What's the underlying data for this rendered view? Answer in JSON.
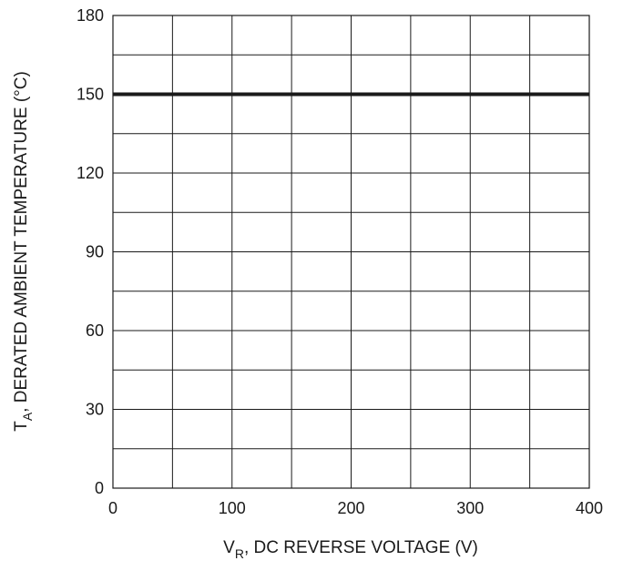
{
  "chart_data": {
    "type": "line",
    "xlabel": {
      "main": "V",
      "sub": "R",
      "rest": ", DC REVERSE VOLTAGE (V)"
    },
    "ylabel": {
      "main": "T",
      "sub": "A",
      "rest": ", DERATED AMBIENT TEMPERATURE (°C)"
    },
    "xlim": [
      0,
      400
    ],
    "ylim": [
      0,
      180
    ],
    "xticks": [
      0,
      100,
      200,
      300,
      400
    ],
    "yticks": [
      0,
      30,
      60,
      90,
      120,
      150,
      180
    ],
    "xgrid_step": 50,
    "ygrid_step": 15,
    "grid": true,
    "series": [
      {
        "x": [
          0,
          400
        ],
        "y": [
          150,
          150
        ]
      }
    ]
  }
}
